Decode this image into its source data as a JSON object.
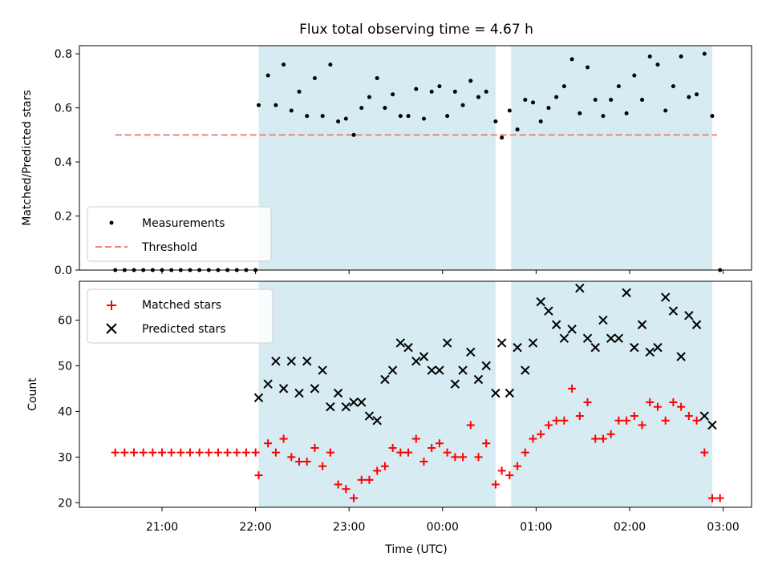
{
  "chart_data": {
    "title": "Flux total observing time = 4.67 h",
    "xlabel": "Time (UTC)",
    "x_ticks": [
      "21:00",
      "22:00",
      "23:00",
      "00:00",
      "01:00",
      "02:00",
      "03:00"
    ],
    "shaded_intervals": [
      [
        "22:02",
        "00:34"
      ],
      [
        "00:44",
        "02:53"
      ]
    ],
    "shade_color": "#add8e6",
    "panels": [
      {
        "type": "scatter",
        "ylabel": "Matched/Predicted stars",
        "ylim": [
          0,
          0.83
        ],
        "y_ticks": [
          "0.0",
          "0.2",
          "0.4",
          "0.6",
          "0.8"
        ],
        "threshold": {
          "name": "Threshold",
          "value": 0.5,
          "x_range": [
            "20:30",
            "02:56"
          ],
          "color": "#f08080"
        },
        "series": [
          {
            "name": "Measurements",
            "color": "#000000",
            "marker": "dot",
            "points": [
              [
                "20:30",
                0
              ],
              [
                "20:36",
                0
              ],
              [
                "20:42",
                0
              ],
              [
                "20:48",
                0
              ],
              [
                "20:54",
                0
              ],
              [
                "21:00",
                0
              ],
              [
                "21:06",
                0
              ],
              [
                "21:12",
                0
              ],
              [
                "21:18",
                0
              ],
              [
                "21:24",
                0
              ],
              [
                "21:30",
                0
              ],
              [
                "21:36",
                0
              ],
              [
                "21:42",
                0
              ],
              [
                "21:48",
                0
              ],
              [
                "21:54",
                0
              ],
              [
                "22:00",
                0
              ],
              [
                "22:02",
                0.61
              ],
              [
                "22:08",
                0.72
              ],
              [
                "22:13",
                0.61
              ],
              [
                "22:18",
                0.76
              ],
              [
                "22:23",
                0.59
              ],
              [
                "22:28",
                0.66
              ],
              [
                "22:33",
                0.57
              ],
              [
                "22:38",
                0.71
              ],
              [
                "22:43",
                0.57
              ],
              [
                "22:48",
                0.76
              ],
              [
                "22:53",
                0.55
              ],
              [
                "22:58",
                0.56
              ],
              [
                "23:03",
                0.5
              ],
              [
                "23:08",
                0.6
              ],
              [
                "23:13",
                0.64
              ],
              [
                "23:18",
                0.71
              ],
              [
                "23:23",
                0.6
              ],
              [
                "23:28",
                0.65
              ],
              [
                "23:33",
                0.57
              ],
              [
                "23:38",
                0.57
              ],
              [
                "23:43",
                0.67
              ],
              [
                "23:48",
                0.56
              ],
              [
                "23:53",
                0.66
              ],
              [
                "23:58",
                0.68
              ],
              [
                "00:03",
                0.57
              ],
              [
                "00:08",
                0.66
              ],
              [
                "00:13",
                0.61
              ],
              [
                "00:18",
                0.7
              ],
              [
                "00:23",
                0.64
              ],
              [
                "00:28",
                0.66
              ],
              [
                "00:34",
                0.55
              ],
              [
                "00:38",
                0.49
              ],
              [
                "00:43",
                0.59
              ],
              [
                "00:48",
                0.52
              ],
              [
                "00:53",
                0.63
              ],
              [
                "00:58",
                0.62
              ],
              [
                "01:03",
                0.55
              ],
              [
                "01:08",
                0.6
              ],
              [
                "01:13",
                0.64
              ],
              [
                "01:18",
                0.68
              ],
              [
                "01:23",
                0.78
              ],
              [
                "01:28",
                0.58
              ],
              [
                "01:33",
                0.75
              ],
              [
                "01:38",
                0.63
              ],
              [
                "01:43",
                0.57
              ],
              [
                "01:48",
                0.63
              ],
              [
                "01:53",
                0.68
              ],
              [
                "01:58",
                0.58
              ],
              [
                "02:03",
                0.72
              ],
              [
                "02:08",
                0.63
              ],
              [
                "02:13",
                0.79
              ],
              [
                "02:18",
                0.76
              ],
              [
                "02:23",
                0.59
              ],
              [
                "02:28",
                0.68
              ],
              [
                "02:33",
                0.79
              ],
              [
                "02:38",
                0.64
              ],
              [
                "02:43",
                0.65
              ],
              [
                "02:48",
                0.8
              ],
              [
                "02:53",
                0.57
              ],
              [
                "02:58",
                0
              ]
            ]
          }
        ],
        "legend_position": "lower-left"
      },
      {
        "type": "scatter",
        "ylabel": "Count",
        "ylim": [
          19,
          68.5
        ],
        "y_ticks": [
          "20",
          "30",
          "40",
          "50",
          "60"
        ],
        "series": [
          {
            "name": "Matched stars",
            "color": "#ff0000",
            "marker": "plus",
            "points": [
              [
                "20:30",
                31
              ],
              [
                "20:36",
                31
              ],
              [
                "20:42",
                31
              ],
              [
                "20:48",
                31
              ],
              [
                "20:54",
                31
              ],
              [
                "21:00",
                31
              ],
              [
                "21:06",
                31
              ],
              [
                "21:12",
                31
              ],
              [
                "21:18",
                31
              ],
              [
                "21:24",
                31
              ],
              [
                "21:30",
                31
              ],
              [
                "21:36",
                31
              ],
              [
                "21:42",
                31
              ],
              [
                "21:48",
                31
              ],
              [
                "21:54",
                31
              ],
              [
                "22:00",
                31
              ],
              [
                "22:02",
                26
              ],
              [
                "22:08",
                33
              ],
              [
                "22:13",
                31
              ],
              [
                "22:18",
                34
              ],
              [
                "22:23",
                30
              ],
              [
                "22:28",
                29
              ],
              [
                "22:33",
                29
              ],
              [
                "22:38",
                32
              ],
              [
                "22:43",
                28
              ],
              [
                "22:48",
                31
              ],
              [
                "22:53",
                24
              ],
              [
                "22:58",
                23
              ],
              [
                "23:03",
                21
              ],
              [
                "23:08",
                25
              ],
              [
                "23:13",
                25
              ],
              [
                "23:18",
                27
              ],
              [
                "23:23",
                28
              ],
              [
                "23:28",
                32
              ],
              [
                "23:33",
                31
              ],
              [
                "23:38",
                31
              ],
              [
                "23:43",
                34
              ],
              [
                "23:48",
                29
              ],
              [
                "23:53",
                32
              ],
              [
                "23:58",
                33
              ],
              [
                "00:03",
                31
              ],
              [
                "00:08",
                30
              ],
              [
                "00:13",
                30
              ],
              [
                "00:18",
                37
              ],
              [
                "00:23",
                30
              ],
              [
                "00:28",
                33
              ],
              [
                "00:34",
                24
              ],
              [
                "00:38",
                27
              ],
              [
                "00:43",
                26
              ],
              [
                "00:48",
                28
              ],
              [
                "00:53",
                31
              ],
              [
                "00:58",
                34
              ],
              [
                "01:03",
                35
              ],
              [
                "01:08",
                37
              ],
              [
                "01:13",
                38
              ],
              [
                "01:18",
                38
              ],
              [
                "01:23",
                45
              ],
              [
                "01:28",
                39
              ],
              [
                "01:33",
                42
              ],
              [
                "01:38",
                34
              ],
              [
                "01:43",
                34
              ],
              [
                "01:48",
                35
              ],
              [
                "01:53",
                38
              ],
              [
                "01:58",
                38
              ],
              [
                "02:03",
                39
              ],
              [
                "02:08",
                37
              ],
              [
                "02:13",
                42
              ],
              [
                "02:18",
                41
              ],
              [
                "02:23",
                38
              ],
              [
                "02:28",
                42
              ],
              [
                "02:33",
                41
              ],
              [
                "02:38",
                39
              ],
              [
                "02:43",
                38
              ],
              [
                "02:48",
                31
              ],
              [
                "02:53",
                21
              ],
              [
                "02:58",
                21
              ]
            ]
          },
          {
            "name": "Predicted stars",
            "color": "#000000",
            "marker": "x",
            "points": [
              [
                "22:02",
                43
              ],
              [
                "22:08",
                46
              ],
              [
                "22:13",
                51
              ],
              [
                "22:18",
                45
              ],
              [
                "22:23",
                51
              ],
              [
                "22:28",
                44
              ],
              [
                "22:33",
                51
              ],
              [
                "22:38",
                45
              ],
              [
                "22:43",
                49
              ],
              [
                "22:48",
                41
              ],
              [
                "22:53",
                44
              ],
              [
                "22:58",
                41
              ],
              [
                "23:03",
                42
              ],
              [
                "23:08",
                42
              ],
              [
                "23:13",
                39
              ],
              [
                "23:18",
                38
              ],
              [
                "23:23",
                47
              ],
              [
                "23:28",
                49
              ],
              [
                "23:33",
                55
              ],
              [
                "23:38",
                54
              ],
              [
                "23:43",
                51
              ],
              [
                "23:48",
                52
              ],
              [
                "23:53",
                49
              ],
              [
                "23:58",
                49
              ],
              [
                "00:03",
                55
              ],
              [
                "00:08",
                46
              ],
              [
                "00:13",
                49
              ],
              [
                "00:18",
                53
              ],
              [
                "00:23",
                47
              ],
              [
                "00:28",
                50
              ],
              [
                "00:34",
                44
              ],
              [
                "00:38",
                55
              ],
              [
                "00:43",
                44
              ],
              [
                "00:48",
                54
              ],
              [
                "00:53",
                49
              ],
              [
                "00:58",
                55
              ],
              [
                "01:03",
                64
              ],
              [
                "01:08",
                62
              ],
              [
                "01:13",
                59
              ],
              [
                "01:18",
                56
              ],
              [
                "01:23",
                58
              ],
              [
                "01:28",
                67
              ],
              [
                "01:33",
                56
              ],
              [
                "01:38",
                54
              ],
              [
                "01:43",
                60
              ],
              [
                "01:48",
                56
              ],
              [
                "01:53",
                56
              ],
              [
                "01:58",
                66
              ],
              [
                "02:03",
                54
              ],
              [
                "02:08",
                59
              ],
              [
                "02:13",
                53
              ],
              [
                "02:18",
                54
              ],
              [
                "02:23",
                65
              ],
              [
                "02:28",
                62
              ],
              [
                "02:33",
                52
              ],
              [
                "02:38",
                61
              ],
              [
                "02:43",
                59
              ],
              [
                "02:48",
                39
              ],
              [
                "02:53",
                37
              ]
            ]
          }
        ],
        "legend_position": "upper-left"
      }
    ]
  }
}
